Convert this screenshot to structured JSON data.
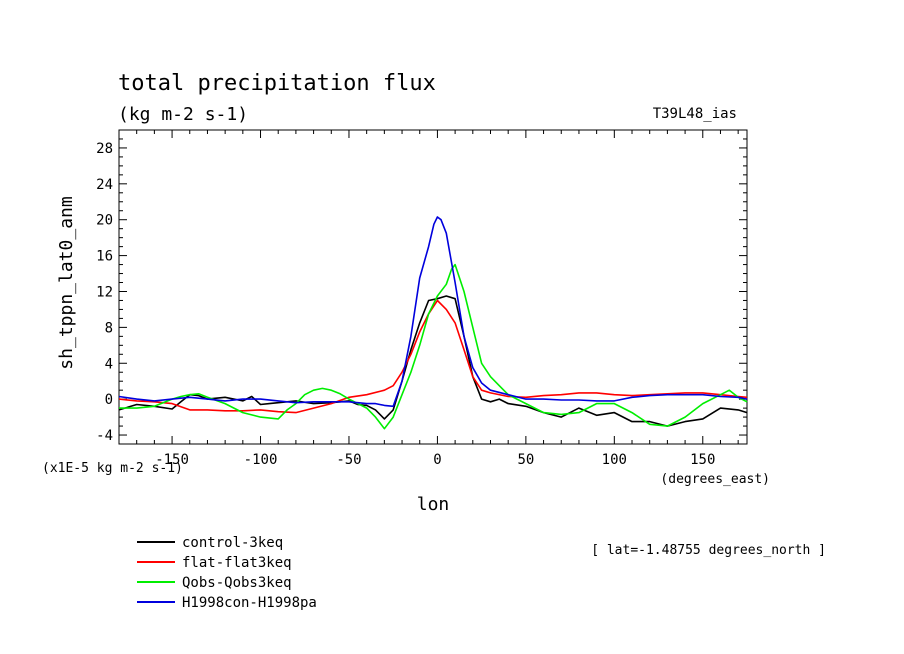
{
  "chart_data": {
    "type": "line",
    "title": "total precipitation flux",
    "subtitle": "(kg m-2 s-1)",
    "experiment_label": "T39L48_ias",
    "xlabel": "lon",
    "x_units": "(degrees_east)",
    "ylabel": "sh_tppn_lat0_anm",
    "y_scale_note": "(x1E-5 kg m-2 s-1)",
    "annotation": "[ lat=-1.48755 degrees_north ]",
    "xlim": [
      -180,
      175
    ],
    "ylim": [
      -5,
      30
    ],
    "x_ticks": [
      -150,
      -100,
      -50,
      0,
      50,
      100,
      150
    ],
    "x_tick_labels": [
      "-150",
      "-100",
      "-50",
      "0",
      "50",
      "100",
      "150"
    ],
    "y_ticks": [
      -4,
      0,
      4,
      8,
      12,
      16,
      20,
      24,
      28
    ],
    "y_tick_labels": [
      "-4",
      "0",
      "4",
      "8",
      "12",
      "16",
      "20",
      "24",
      "28"
    ],
    "grid": false,
    "legend_position": "bottom-left",
    "series": [
      {
        "name": "control-3keq",
        "color": "#000000",
        "x": [
          -180,
          -170,
          -160,
          -150,
          -145,
          -140,
          -135,
          -130,
          -120,
          -110,
          -105,
          -100,
          -95,
          -90,
          -80,
          -70,
          -60,
          -50,
          -45,
          -40,
          -35,
          -30,
          -25,
          -20,
          -15,
          -10,
          -5,
          0,
          5,
          10,
          15,
          20,
          25,
          30,
          35,
          40,
          50,
          60,
          70,
          80,
          90,
          100,
          110,
          120,
          130,
          140,
          150,
          160,
          170,
          175
        ],
        "y": [
          -1.2,
          -0.6,
          -0.8,
          -1.1,
          -0.3,
          0.5,
          0.4,
          0.0,
          0.2,
          -0.2,
          0.3,
          -0.6,
          -0.5,
          -0.4,
          -0.2,
          -0.5,
          -0.4,
          -0.2,
          -0.6,
          -0.7,
          -1.2,
          -2.2,
          -1.2,
          2.0,
          5.5,
          8.5,
          11.0,
          11.2,
          11.5,
          11.2,
          7.0,
          2.5,
          0.0,
          -0.3,
          0.0,
          -0.5,
          -0.8,
          -1.5,
          -2.0,
          -1.0,
          -1.8,
          -1.5,
          -2.5,
          -2.5,
          -3.0,
          -2.5,
          -2.2,
          -1.0,
          -1.2,
          -1.5
        ]
      },
      {
        "name": "flat-flat3keq",
        "color": "#ff0000",
        "x": [
          -180,
          -170,
          -160,
          -150,
          -140,
          -130,
          -120,
          -110,
          -100,
          -90,
          -80,
          -70,
          -60,
          -50,
          -40,
          -30,
          -25,
          -20,
          -15,
          -10,
          -5,
          0,
          5,
          10,
          15,
          20,
          25,
          30,
          40,
          50,
          60,
          70,
          80,
          90,
          100,
          110,
          120,
          130,
          140,
          150,
          160,
          170,
          175
        ],
        "y": [
          0.0,
          -0.2,
          -0.3,
          -0.5,
          -1.2,
          -1.2,
          -1.3,
          -1.3,
          -1.2,
          -1.4,
          -1.5,
          -1.0,
          -0.5,
          0.2,
          0.5,
          1.0,
          1.5,
          3.0,
          5.0,
          7.5,
          9.5,
          11.0,
          10.0,
          8.5,
          5.5,
          2.5,
          1.0,
          0.7,
          0.3,
          0.2,
          0.4,
          0.5,
          0.7,
          0.7,
          0.5,
          0.4,
          0.5,
          0.6,
          0.7,
          0.7,
          0.5,
          0.3,
          0.2
        ]
      },
      {
        "name": "Qobs-Qobs3keq",
        "color": "#00ee00",
        "x": [
          -180,
          -170,
          -160,
          -150,
          -145,
          -140,
          -135,
          -130,
          -120,
          -110,
          -100,
          -90,
          -85,
          -80,
          -75,
          -70,
          -65,
          -60,
          -55,
          -50,
          -45,
          -40,
          -35,
          -30,
          -25,
          -20,
          -15,
          -10,
          -5,
          0,
          5,
          8,
          10,
          15,
          20,
          25,
          30,
          35,
          40,
          50,
          60,
          70,
          80,
          90,
          100,
          110,
          120,
          130,
          140,
          150,
          160,
          165,
          170,
          175
        ],
        "y": [
          -1.0,
          -1.0,
          -0.8,
          0.0,
          0.3,
          0.5,
          0.6,
          0.2,
          -0.5,
          -1.5,
          -2.0,
          -2.2,
          -1.2,
          -0.5,
          0.5,
          1.0,
          1.2,
          1.0,
          0.6,
          0.0,
          -0.5,
          -1.0,
          -2.0,
          -3.3,
          -2.0,
          0.5,
          3.0,
          6.0,
          9.5,
          11.5,
          12.8,
          14.5,
          15.0,
          12.0,
          8.0,
          4.0,
          2.5,
          1.5,
          0.5,
          -0.5,
          -1.5,
          -1.7,
          -1.5,
          -0.5,
          -0.5,
          -1.5,
          -2.8,
          -3.0,
          -2.0,
          -0.5,
          0.5,
          1.0,
          0.2,
          -0.3
        ]
      },
      {
        "name": "H1998con-H1998pa",
        "color": "#0000dd",
        "x": [
          -180,
          -170,
          -160,
          -150,
          -140,
          -130,
          -120,
          -110,
          -100,
          -90,
          -80,
          -70,
          -60,
          -50,
          -40,
          -35,
          -30,
          -25,
          -20,
          -15,
          -10,
          -5,
          -2,
          0,
          2,
          5,
          10,
          15,
          20,
          25,
          30,
          40,
          50,
          60,
          70,
          80,
          90,
          100,
          110,
          120,
          130,
          140,
          150,
          160,
          170,
          175
        ],
        "y": [
          0.3,
          0.0,
          -0.2,
          0.0,
          0.2,
          0.0,
          -0.2,
          0.0,
          0.0,
          -0.2,
          -0.4,
          -0.3,
          -0.3,
          -0.3,
          -0.5,
          -0.5,
          -0.7,
          -0.8,
          2.0,
          7.0,
          13.5,
          17.0,
          19.5,
          20.3,
          20.0,
          18.5,
          13.0,
          7.0,
          3.5,
          1.8,
          1.0,
          0.5,
          0.0,
          0.0,
          -0.1,
          -0.1,
          -0.2,
          -0.2,
          0.2,
          0.4,
          0.5,
          0.5,
          0.5,
          0.3,
          0.2,
          0.0
        ]
      }
    ]
  }
}
